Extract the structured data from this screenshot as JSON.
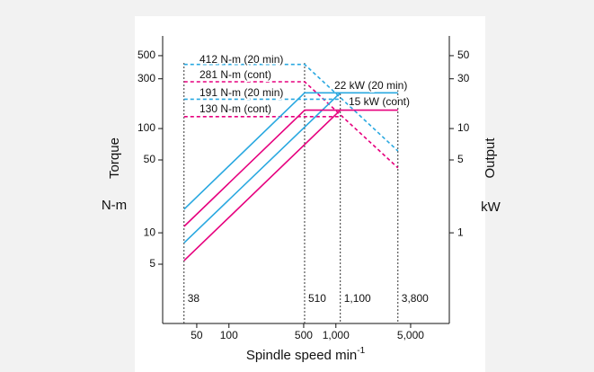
{
  "chart_data": {
    "type": "line",
    "xlog": true,
    "ylog": true,
    "xlabel": "Spindle speed  min",
    "xlabel_sup": "-1",
    "ylabel": "Torque",
    "yunit": "N-m",
    "y2label": "Output",
    "y2unit": "kW",
    "xlim": [
      24,
      11500
    ],
    "ylim": [
      1.35,
      773
    ],
    "y2lim": [
      0.135,
      77.3
    ],
    "xticks": [
      50,
      100,
      500,
      {
        "value": 1000,
        "label": "1,000"
      },
      {
        "value": 5000,
        "label": "5,000"
      }
    ],
    "yticks": [
      5,
      10,
      50,
      100,
      300,
      500
    ],
    "y2ticks": [
      1,
      5,
      10,
      30,
      50
    ],
    "markers": [
      38,
      510,
      {
        "value": 1100,
        "label": "1,100"
      },
      {
        "value": 3800,
        "label": "3,800"
      }
    ],
    "series": [
      {
        "name": "412 N-m (20 min)",
        "color": "#29a8e0",
        "dashed": true,
        "axis": "y",
        "x": [
          38,
          510,
          3800
        ],
        "values": [
          412,
          412,
          61
        ]
      },
      {
        "name": "281 N-m (cont)",
        "color": "#e6007e",
        "dashed": true,
        "axis": "y",
        "x": [
          38,
          510,
          3800
        ],
        "values": [
          281,
          281,
          42
        ]
      },
      {
        "name": "191 N-m (20 min)",
        "color": "#29a8e0",
        "dashed": true,
        "axis": "y",
        "x": [
          38,
          1100
        ],
        "values": [
          191,
          191
        ]
      },
      {
        "name": "130 N-m (cont)",
        "color": "#e6007e",
        "dashed": true,
        "axis": "y",
        "x": [
          38,
          1100
        ],
        "values": [
          130,
          130
        ]
      },
      {
        "name": "22 kW (20 min)",
        "color": "#29a8e0",
        "dashed": false,
        "axis": "y2",
        "x": [
          38,
          510,
          3800
        ],
        "values": [
          1.68,
          22,
          22
        ]
      },
      {
        "color": "#29a8e0",
        "dashed": false,
        "axis": "y2",
        "x": [
          38,
          1100
        ],
        "values": [
          0.8,
          22
        ]
      },
      {
        "name": "15 kW (cont)",
        "color": "#e6007e",
        "dashed": false,
        "axis": "y2",
        "x": [
          38,
          510,
          3800
        ],
        "values": [
          1.15,
          15,
          15
        ]
      },
      {
        "color": "#e6007e",
        "dashed": false,
        "axis": "y2",
        "x": [
          38,
          1100
        ],
        "values": [
          0.54,
          15
        ]
      }
    ]
  }
}
